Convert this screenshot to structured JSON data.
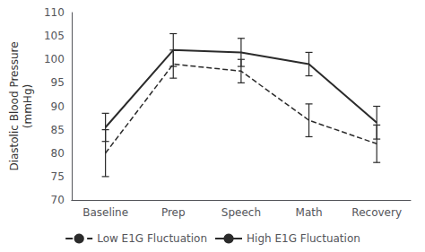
{
  "chart_data": {
    "type": "line",
    "ylabel": "Diastolic Blood Pressure\n(mmHg)",
    "categories": [
      "Baseline",
      "Prep",
      "Speech",
      "Math",
      "Recovery"
    ],
    "series": [
      {
        "name": "Low E1G Fluctuation",
        "color": "#2b2b2b",
        "line_style": "dashed",
        "values": [
          80,
          99,
          97.5,
          87,
          82
        ],
        "errors": [
          5.0,
          3.0,
          2.5,
          3.5,
          4.0
        ]
      },
      {
        "name": "High E1G Fluctuation",
        "color": "#2b2b2b",
        "line_style": "solid",
        "values": [
          85.5,
          102,
          101.5,
          99,
          86.5
        ],
        "errors": [
          3.0,
          3.5,
          3.0,
          2.5,
          3.5
        ]
      }
    ],
    "ylim": [
      70,
      110
    ],
    "yticks": [
      70,
      75,
      80,
      85,
      90,
      95,
      100,
      105,
      110
    ],
    "grid": false,
    "legend": "bottom"
  }
}
